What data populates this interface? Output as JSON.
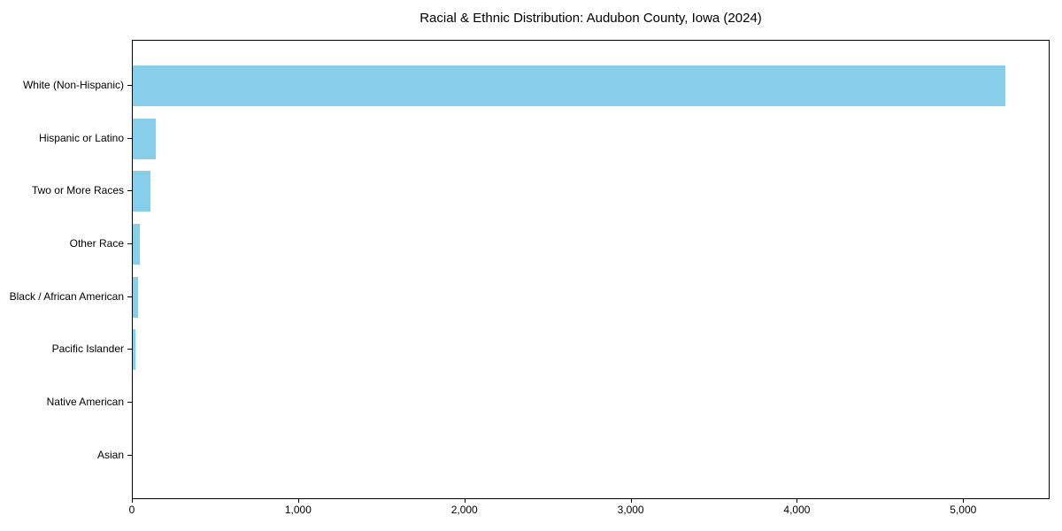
{
  "chart_data": {
    "type": "bar",
    "orientation": "horizontal",
    "title": "Racial & Ethnic Distribution: Audubon County, Iowa (2024)",
    "categories": [
      "White (Non-Hispanic)",
      "Hispanic or Latino",
      "Two or More Races",
      "Other Race",
      "Black / African American",
      "Pacific Islander",
      "Native American",
      "Asian"
    ],
    "values": [
      5260,
      140,
      108,
      43,
      32,
      14,
      0,
      0
    ],
    "xlabel": "",
    "ylabel": "",
    "xlim": [
      0,
      5520
    ],
    "xticks": [
      0,
      1000,
      2000,
      3000,
      4000,
      5000
    ],
    "xtick_labels": [
      "0",
      "1,000",
      "2,000",
      "3,000",
      "4,000",
      "5,000"
    ],
    "bar_color": "#87CEEB",
    "axis_color": "#000000",
    "text_color": "#000000",
    "grid": false,
    "legend": null
  }
}
